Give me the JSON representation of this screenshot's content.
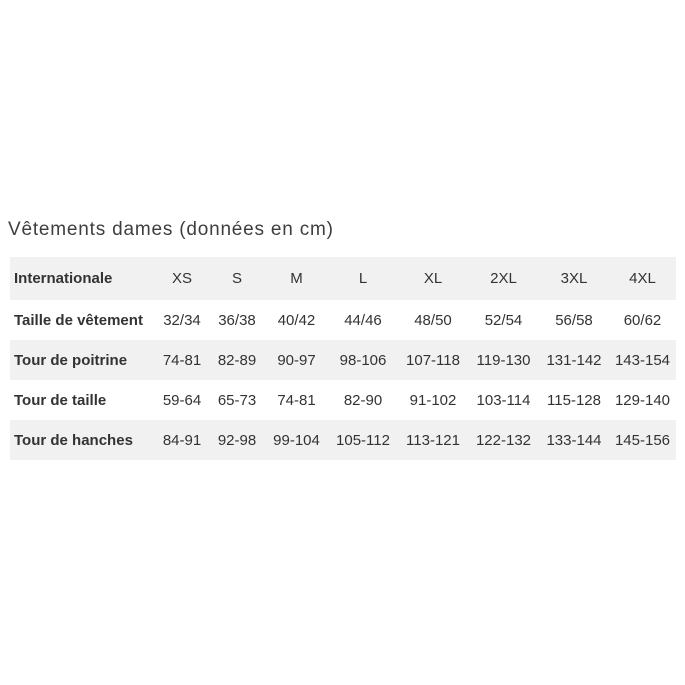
{
  "chart_data": {
    "type": "table",
    "title": "Vêtements dames (données en cm)",
    "columns": [
      "Internationale",
      "XS",
      "S",
      "M",
      "L",
      "XL",
      "2XL",
      "3XL",
      "4XL"
    ],
    "rows": [
      [
        "Taille de vêtement",
        "32/34",
        "36/38",
        "40/42",
        "44/46",
        "48/50",
        "52/54",
        "56/58",
        "60/62"
      ],
      [
        "Tour de poitrine",
        "74-81",
        "82-89",
        "90-97",
        "98-106",
        "107-118",
        "119-130",
        "131-142",
        "143-154"
      ],
      [
        "Tour de taille",
        "59-64",
        "65-73",
        "74-81",
        "82-90",
        "91-102",
        "103-114",
        "115-128",
        "129-140"
      ],
      [
        "Tour de hanches",
        "84-91",
        "92-98",
        "99-104",
        "105-112",
        "113-121",
        "122-132",
        "133-144",
        "145-156"
      ]
    ],
    "layout": {
      "grid": false,
      "striped_rows": true,
      "header_row_shaded": true
    }
  },
  "colors": {
    "stripe": "#f1f1f1",
    "text": "#333333",
    "title": "#3e3e3e",
    "background": "#ffffff"
  }
}
